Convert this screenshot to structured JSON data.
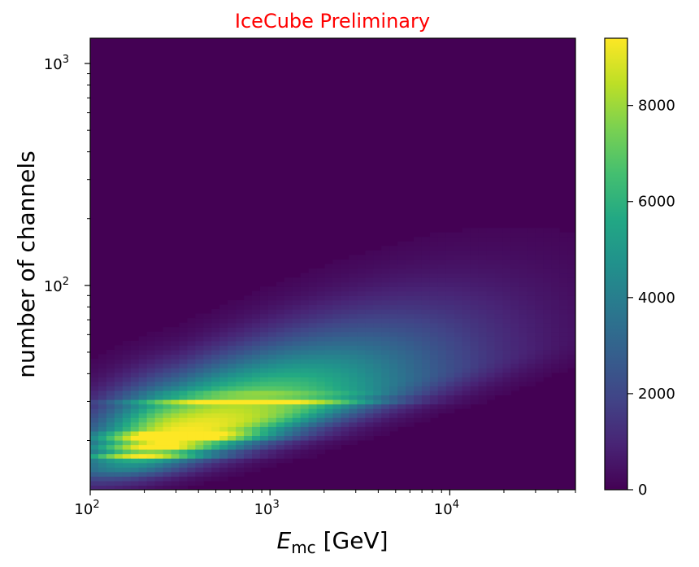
{
  "chart_data": {
    "type": "heatmap",
    "title": "IceCube Preliminary",
    "title_color": "#ff0000",
    "xlabel": {
      "symbol": "E",
      "subscript": "mc",
      "unit": " [GeV]"
    },
    "ylabel": "number of channels",
    "x_scale": "log",
    "y_scale": "log",
    "xlim": [
      100,
      50000
    ],
    "ylim": [
      12,
      1300
    ],
    "x_ticks": [
      {
        "value": 100,
        "label": "10",
        "exp": "2"
      },
      {
        "value": 1000,
        "label": "10",
        "exp": "3"
      },
      {
        "value": 10000,
        "label": "10",
        "exp": "4"
      }
    ],
    "y_ticks": [
      {
        "value": 100,
        "label": "10",
        "exp": "2"
      },
      {
        "value": 1000,
        "label": "10",
        "exp": "3"
      }
    ],
    "colormap": "viridis",
    "colorbar": {
      "min": 0,
      "max": 9400,
      "ticks": [
        0,
        2000,
        4000,
        6000,
        8000
      ],
      "tick_labels": [
        "0",
        "2000",
        "4000",
        "6000",
        "8000"
      ]
    },
    "density_peak": {
      "x": 300,
      "y": 21,
      "value": 9400
    },
    "channel_bands": [
      {
        "y": 30,
        "value": 6800
      },
      {
        "y": 33,
        "value": 4200
      },
      {
        "y": 21,
        "value": 9000
      },
      {
        "y": 19,
        "value": 6000
      },
      {
        "y": 17,
        "value": 7500
      },
      {
        "y": 15,
        "value": 5000
      },
      {
        "y": 14,
        "value": 4500
      }
    ],
    "grid": false
  }
}
